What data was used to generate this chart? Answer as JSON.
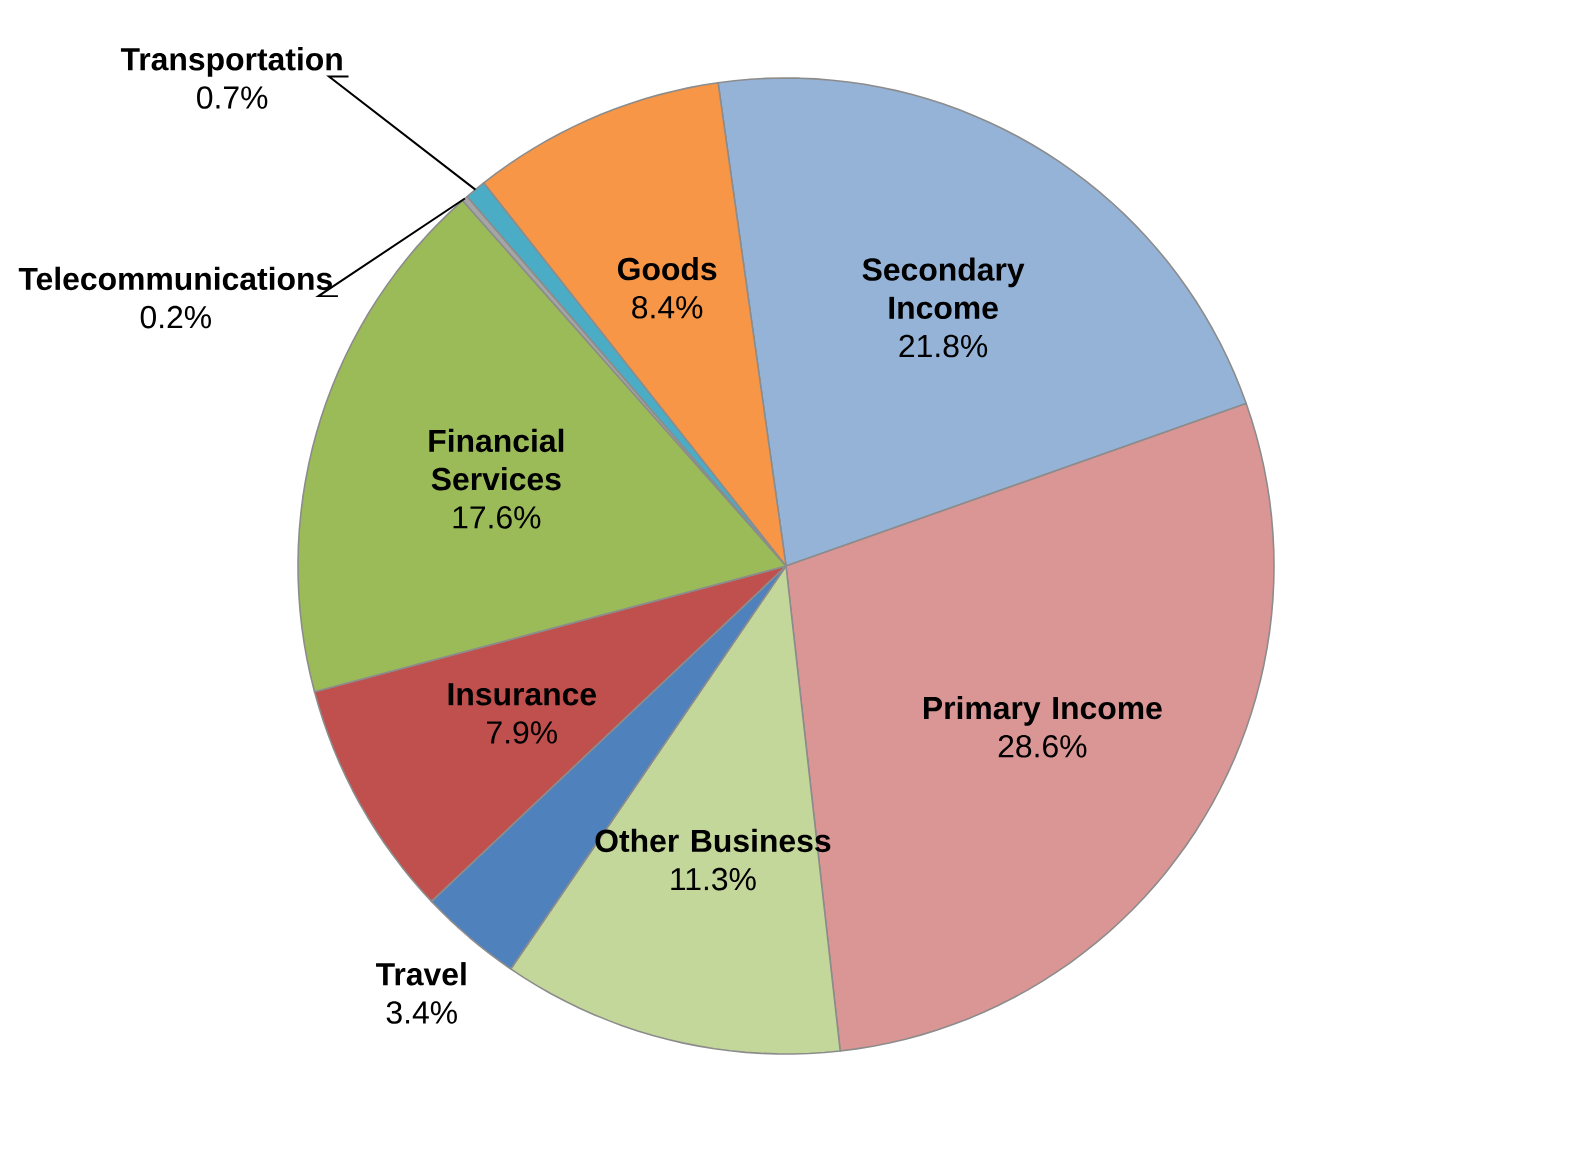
{
  "chart_data": {
    "type": "pie",
    "categories": [
      "Secondary Income",
      "Primary Income",
      "Other Business",
      "Travel",
      "Insurance",
      "Financial Services",
      "Telecommunications",
      "Transportation",
      "Goods"
    ],
    "values": [
      21.8,
      28.6,
      11.3,
      3.4,
      7.9,
      17.6,
      0.2,
      0.7,
      8.4
    ],
    "value_labels": [
      "21.8%",
      "28.6%",
      "11.3%",
      "3.4%",
      "7.9%",
      "17.6%",
      "0.2%",
      "0.7%",
      "8.4%"
    ],
    "colors": [
      "#95b3d7",
      "#da9694",
      "#c4d79b",
      "#4f81bd",
      "#c0504d",
      "#9bbb59",
      "#a5a5a5",
      "#4bacc6",
      "#f79646"
    ]
  }
}
